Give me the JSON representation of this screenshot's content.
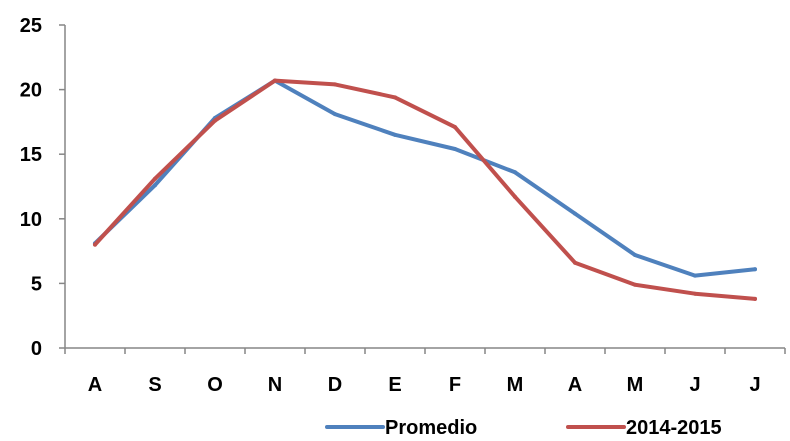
{
  "chart_data": {
    "type": "line",
    "categories": [
      "A",
      "S",
      "O",
      "N",
      "D",
      "E",
      "F",
      "M",
      "A",
      "M",
      "J",
      "J"
    ],
    "series": [
      {
        "name": "Promedio",
        "color": "#4f81bd",
        "values": [
          8.1,
          12.6,
          17.8,
          20.7,
          18.1,
          16.5,
          15.4,
          13.6,
          10.4,
          7.2,
          5.6,
          6.1
        ]
      },
      {
        "name": "2014-2015",
        "color": "#c0504d",
        "values": [
          8.0,
          13.1,
          17.6,
          20.7,
          20.4,
          19.4,
          17.1,
          11.7,
          6.6,
          4.9,
          4.2,
          3.8
        ]
      }
    ],
    "y_ticks": [
      "0",
      "5",
      "10",
      "15",
      "20",
      "25"
    ],
    "ylim": [
      0,
      25
    ],
    "grid": false,
    "legend_position": "bottom",
    "title": "",
    "xlabel": "",
    "ylabel": ""
  }
}
